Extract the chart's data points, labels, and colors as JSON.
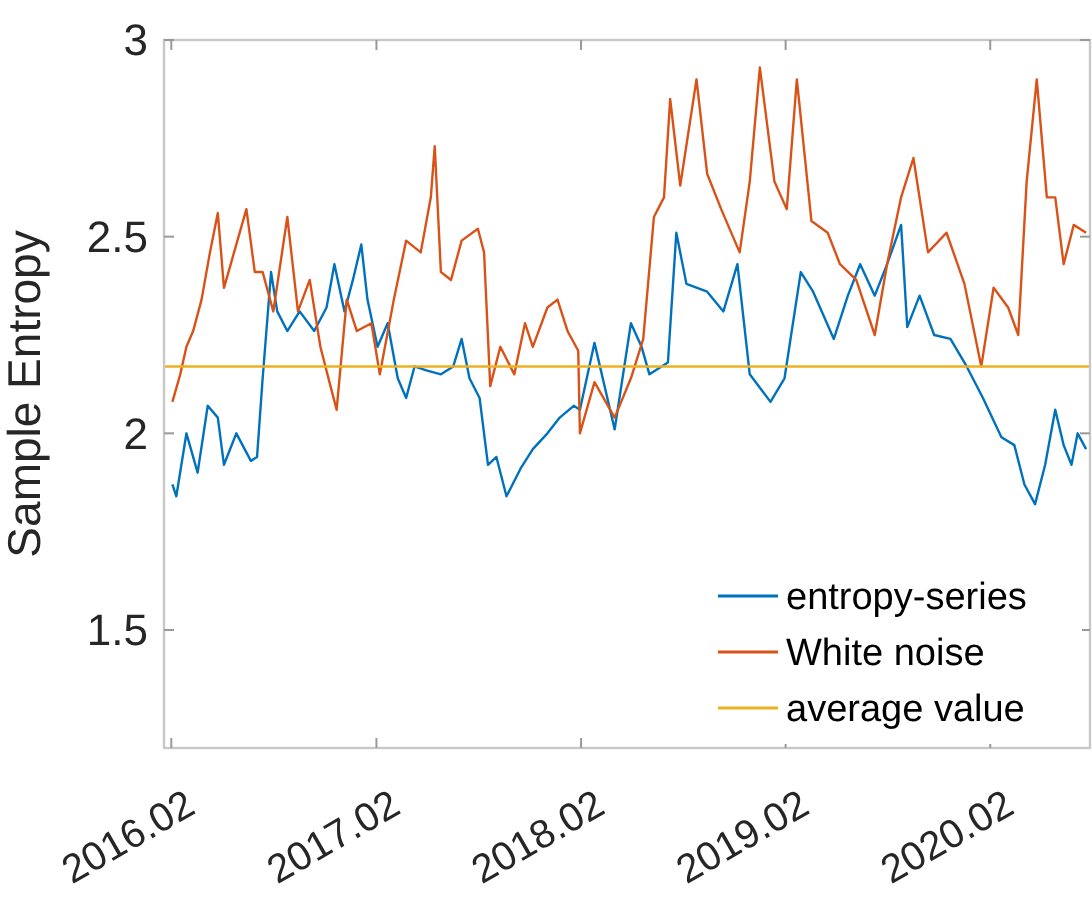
{
  "chart_data": {
    "type": "line",
    "ylabel": "Sample Entropy",
    "xlim": [
      "2016-01-19",
      "2020-07-28"
    ],
    "ylim": [
      1.2,
      3
    ],
    "xticks": [
      {
        "value": "2016-02",
        "label": "2016.02"
      },
      {
        "value": "2017-02",
        "label": "2017.02"
      },
      {
        "value": "2018-02",
        "label": "2018.02"
      },
      {
        "value": "2019-02",
        "label": "2019.02"
      },
      {
        "value": "2020-02",
        "label": "2020.02"
      }
    ],
    "yticks": [
      1.5,
      2,
      2.5,
      3
    ],
    "grid": false,
    "legend": "bottom right",
    "line_style": "solid",
    "marker": "none",
    "series": [
      {
        "name": "entropy-series",
        "color": "#0072bd",
        "x": [
          "2016-02-03",
          "2016-02-10",
          "2016-02-28",
          "2016-03-19",
          "2016-04-06",
          "2016-04-24",
          "2016-05-05",
          "2016-05-27",
          "2016-06-22",
          "2016-07-03",
          "2016-07-13",
          "2016-07-28",
          "2016-08-08",
          "2016-08-26",
          "2016-09-17",
          "2016-10-13",
          "2016-11-04",
          "2016-11-18",
          "2016-12-06",
          "2016-12-21",
          "2017-01-05",
          "2017-01-16",
          "2017-02-03",
          "2017-02-21",
          "2017-03-11",
          "2017-03-26",
          "2017-04-10",
          "2017-05-01",
          "2017-05-27",
          "2017-06-18",
          "2017-07-03",
          "2017-07-17",
          "2017-08-04",
          "2017-08-19",
          "2017-09-03",
          "2017-09-21",
          "2017-10-16",
          "2017-11-07",
          "2017-12-03",
          "2017-12-25",
          "2018-01-19",
          "2018-01-30",
          "2018-02-25",
          "2018-04-02",
          "2018-05-01",
          "2018-05-20",
          "2018-06-03",
          "2018-07-06",
          "2018-07-21",
          "2018-08-08",
          "2018-09-14",
          "2018-10-13",
          "2018-11-07",
          "2018-11-29",
          "2019-01-05",
          "2019-01-30",
          "2019-02-28",
          "2019-03-22",
          "2019-04-28",
          "2019-05-23",
          "2019-06-14",
          "2019-07-10",
          "2019-08-01",
          "2019-08-26",
          "2019-09-06",
          "2019-09-28",
          "2019-10-24",
          "2019-11-22",
          "2019-12-21",
          "2020-01-19",
          "2020-02-21",
          "2020-03-15",
          "2020-04-02",
          "2020-04-21",
          "2020-05-09",
          "2020-05-27",
          "2020-06-11",
          "2020-06-25",
          "2020-07-06",
          "2020-07-21"
        ],
        "values": [
          1.87,
          1.84,
          2.0,
          1.9,
          2.07,
          2.04,
          1.92,
          2.0,
          1.93,
          1.94,
          2.14,
          2.41,
          2.31,
          2.26,
          2.31,
          2.26,
          2.32,
          2.43,
          2.31,
          2.39,
          2.48,
          2.34,
          2.22,
          2.28,
          2.14,
          2.09,
          2.17,
          2.16,
          2.15,
          2.17,
          2.24,
          2.14,
          2.09,
          1.92,
          1.94,
          1.84,
          1.91,
          1.96,
          2.0,
          2.04,
          2.07,
          2.06,
          2.23,
          2.01,
          2.28,
          2.22,
          2.15,
          2.18,
          2.51,
          2.38,
          2.36,
          2.31,
          2.43,
          2.15,
          2.08,
          2.14,
          2.41,
          2.36,
          2.24,
          2.35,
          2.43,
          2.35,
          2.43,
          2.53,
          2.27,
          2.35,
          2.25,
          2.24,
          2.17,
          2.09,
          1.99,
          1.97,
          1.87,
          1.82,
          1.92,
          2.06,
          1.97,
          1.92,
          2.0,
          1.96
        ]
      },
      {
        "name": "White noise",
        "color": "#d95319",
        "x": [
          "2016-02-03",
          "2016-02-17",
          "2016-02-28",
          "2016-03-11",
          "2016-03-26",
          "2016-04-10",
          "2016-04-24",
          "2016-05-05",
          "2016-05-23",
          "2016-06-14",
          "2016-06-29",
          "2016-07-13",
          "2016-08-01",
          "2016-08-26",
          "2016-09-14",
          "2016-10-05",
          "2016-10-24",
          "2016-11-11",
          "2016-11-22",
          "2016-12-10",
          "2016-12-28",
          "2017-01-23",
          "2017-02-07",
          "2017-03-04",
          "2017-03-26",
          "2017-04-21",
          "2017-05-09",
          "2017-05-16",
          "2017-05-27",
          "2017-06-14",
          "2017-07-03",
          "2017-08-01",
          "2017-08-12",
          "2017-08-23",
          "2017-09-10",
          "2017-10-05",
          "2017-10-24",
          "2017-11-07",
          "2017-12-03",
          "2017-12-21",
          "2018-01-08",
          "2018-01-27",
          "2018-01-30",
          "2018-02-25",
          "2018-04-02",
          "2018-05-01",
          "2018-05-23",
          "2018-06-11",
          "2018-06-29",
          "2018-07-10",
          "2018-07-28",
          "2018-08-26",
          "2018-09-14",
          "2018-10-09",
          "2018-11-11",
          "2018-11-29",
          "2018-12-17",
          "2019-01-12",
          "2019-02-03",
          "2019-02-21",
          "2019-03-19",
          "2019-04-17",
          "2019-05-09",
          "2019-06-07",
          "2019-07-10",
          "2019-08-01",
          "2019-08-26",
          "2019-09-17",
          "2019-10-13",
          "2019-11-15",
          "2019-12-17",
          "2020-01-16",
          "2020-02-07",
          "2020-03-04",
          "2020-03-22",
          "2020-04-06",
          "2020-04-24",
          "2020-05-12",
          "2020-05-27",
          "2020-06-11",
          "2020-06-29",
          "2020-07-21"
        ],
        "values": [
          2.08,
          2.15,
          2.22,
          2.26,
          2.34,
          2.46,
          2.56,
          2.37,
          2.46,
          2.57,
          2.41,
          2.41,
          2.31,
          2.55,
          2.31,
          2.39,
          2.22,
          2.12,
          2.06,
          2.34,
          2.26,
          2.28,
          2.15,
          2.34,
          2.49,
          2.46,
          2.6,
          2.73,
          2.41,
          2.39,
          2.49,
          2.52,
          2.46,
          2.12,
          2.22,
          2.15,
          2.28,
          2.22,
          2.32,
          2.34,
          2.26,
          2.21,
          2.0,
          2.13,
          2.04,
          2.14,
          2.24,
          2.55,
          2.6,
          2.85,
          2.63,
          2.9,
          2.66,
          2.57,
          2.46,
          2.64,
          2.93,
          2.64,
          2.57,
          2.9,
          2.54,
          2.51,
          2.43,
          2.39,
          2.25,
          2.43,
          2.6,
          2.7,
          2.46,
          2.51,
          2.38,
          2.17,
          2.37,
          2.32,
          2.25,
          2.64,
          2.9,
          2.6,
          2.6,
          2.43,
          2.53,
          2.51
        ]
      },
      {
        "name": "average value",
        "color": "#edb120",
        "x": [
          "2016-01-19",
          "2020-07-28"
        ],
        "values": [
          2.17,
          2.17
        ]
      }
    ]
  }
}
